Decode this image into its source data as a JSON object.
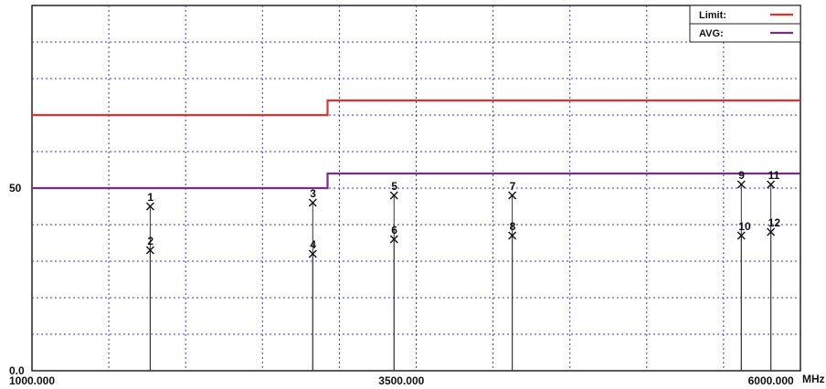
{
  "chart_data": {
    "type": "line",
    "xlim": [
      1000,
      6200
    ],
    "ylim": [
      0,
      100
    ],
    "grid": true,
    "legend_position": "top-right",
    "x_tick_labels": [
      {
        "value": 1000,
        "label": "1000.000"
      },
      {
        "value": 3500,
        "label": "3500.000"
      },
      {
        "value": 6000,
        "label": "6000.000"
      }
    ],
    "x_unit": "MHz",
    "y_tick_labels": [
      {
        "value": 0,
        "label": "0.0"
      },
      {
        "value": 50,
        "label": "50"
      }
    ],
    "series": [
      {
        "name": "Limit:",
        "color": "#e8302a",
        "points": [
          [
            1000,
            70
          ],
          [
            3000,
            70
          ],
          [
            3000,
            74
          ],
          [
            6200,
            74
          ]
        ]
      },
      {
        "name": "AVG:",
        "color": "#7a2a8a",
        "points": [
          [
            1000,
            50
          ],
          [
            3000,
            50
          ],
          [
            3000,
            54
          ],
          [
            6200,
            54
          ]
        ]
      }
    ],
    "markers": [
      {
        "label": "1",
        "x": 1800,
        "y": 45
      },
      {
        "label": "2",
        "x": 1800,
        "y": 33
      },
      {
        "label": "3",
        "x": 2900,
        "y": 46
      },
      {
        "label": "4",
        "x": 2900,
        "y": 32
      },
      {
        "label": "5",
        "x": 3450,
        "y": 48
      },
      {
        "label": "6",
        "x": 3450,
        "y": 36
      },
      {
        "label": "7",
        "x": 4250,
        "y": 48
      },
      {
        "label": "8",
        "x": 4250,
        "y": 37
      },
      {
        "label": "9",
        "x": 5800,
        "y": 51
      },
      {
        "label": "10",
        "x": 5800,
        "y": 37
      },
      {
        "label": "11",
        "x": 6000,
        "y": 51
      },
      {
        "label": "12",
        "x": 6000,
        "y": 38
      }
    ]
  }
}
